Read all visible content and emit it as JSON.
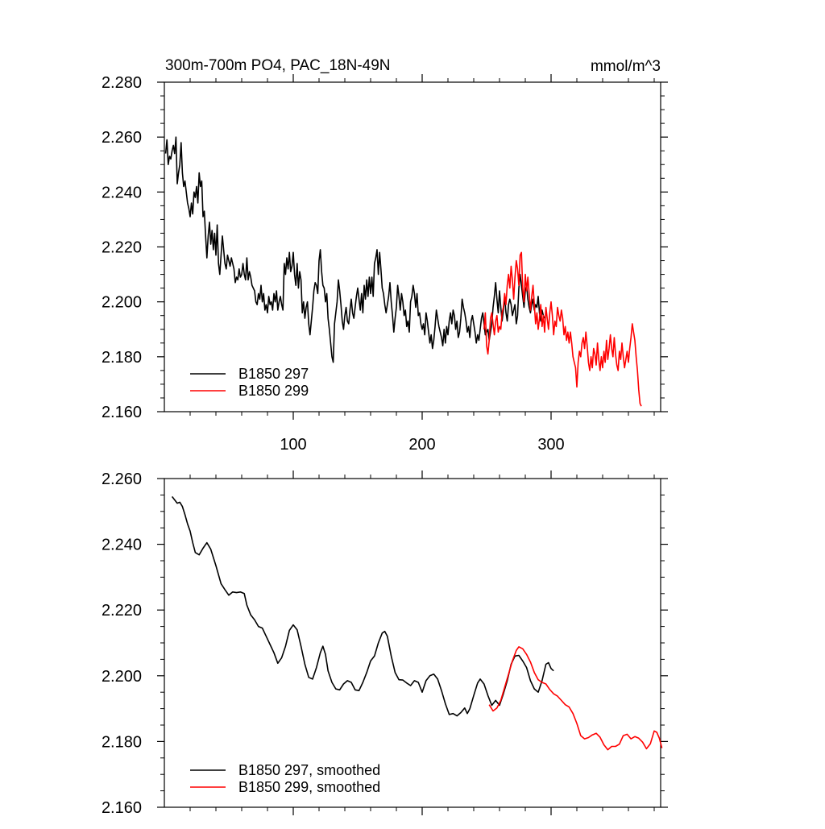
{
  "chart_data": [
    {
      "type": "line",
      "title": "300m-700m PO4, PAC_18N-49N",
      "units": "mmol/m^3",
      "xlim": [
        0,
        385
      ],
      "ylim": [
        2.16,
        2.28
      ],
      "y_ticks": [
        "2.280",
        "2.260",
        "2.240",
        "2.220",
        "2.200",
        "2.180",
        "2.160"
      ],
      "x_ticks": [
        "100",
        "200",
        "300"
      ],
      "legend": [
        "B1850 297",
        "B1850 299"
      ],
      "series": [
        {
          "name": "B1850 297",
          "color": "#000000",
          "x_start": 1,
          "x_step": 1,
          "values": [
            2.254,
            2.259,
            2.25,
            2.253,
            2.252,
            2.255,
            2.257,
            2.254,
            2.26,
            2.243,
            2.247,
            2.25,
            2.258,
            2.247,
            2.242,
            2.244,
            2.24,
            2.236,
            2.234,
            2.231,
            2.236,
            2.232,
            2.24,
            2.238,
            2.242,
            2.236,
            2.247,
            2.242,
            2.244,
            2.231,
            2.233,
            2.224,
            2.216,
            2.224,
            2.229,
            2.221,
            2.226,
            2.219,
            2.225,
            2.217,
            2.228,
            2.214,
            2.21,
            2.217,
            2.224,
            2.219,
            2.214,
            2.212,
            2.217,
            2.215,
            2.213,
            2.216,
            2.214,
            2.212,
            2.207,
            2.209,
            2.208,
            2.212,
            2.209,
            2.21,
            2.214,
            2.21,
            2.208,
            2.216,
            2.208,
            2.211,
            2.209,
            2.206,
            2.205,
            2.204,
            2.2,
            2.199,
            2.203,
            2.201,
            2.206,
            2.2,
            2.203,
            2.197,
            2.199,
            2.196,
            2.202,
            2.199,
            2.2,
            2.197,
            2.203,
            2.2,
            2.204,
            2.197,
            2.2,
            2.202,
            2.199,
            2.197,
            2.214,
            2.21,
            2.216,
            2.212,
            2.218,
            2.211,
            2.213,
            2.218,
            2.21,
            2.206,
            2.214,
            2.205,
            2.211,
            2.208,
            2.196,
            2.2,
            2.194,
            2.198,
            2.2,
            2.192,
            2.188,
            2.193,
            2.198,
            2.204,
            2.207,
            2.206,
            2.203,
            2.215,
            2.219,
            2.211,
            2.206,
            2.205,
            2.2,
            2.203,
            2.194,
            2.19,
            2.185,
            2.18,
            2.178,
            2.192,
            2.196,
            2.2,
            2.208,
            2.204,
            2.199,
            2.193,
            2.19,
            2.195,
            2.198,
            2.193,
            2.192,
            2.197,
            2.201,
            2.196,
            2.194,
            2.198,
            2.202,
            2.205,
            2.201,
            2.197,
            2.203,
            2.196,
            2.206,
            2.201,
            2.208,
            2.202,
            2.209,
            2.203,
            2.209,
            2.202,
            2.214,
            2.216,
            2.219,
            2.21,
            2.218,
            2.212,
            2.205,
            2.203,
            2.199,
            2.196,
            2.199,
            2.202,
            2.207,
            2.2,
            2.195,
            2.189,
            2.194,
            2.198,
            2.206,
            2.202,
            2.197,
            2.203,
            2.2,
            2.195,
            2.197,
            2.191,
            2.193,
            2.189,
            2.2,
            2.202,
            2.206,
            2.203,
            2.198,
            2.203,
            2.195,
            2.196,
            2.192,
            2.19,
            2.192,
            2.188,
            2.196,
            2.193,
            2.189,
            2.185,
            2.188,
            2.183,
            2.186,
            2.191,
            2.197,
            2.194,
            2.191,
            2.189,
            2.187,
            2.184,
            2.19,
            2.185,
            2.191,
            2.188,
            2.193,
            2.196,
            2.192,
            2.197,
            2.195,
            2.19,
            2.193,
            2.187,
            2.189,
            2.194,
            2.201,
            2.198,
            2.196,
            2.193,
            2.189,
            2.191,
            2.187,
            2.193,
            2.195,
            2.192,
            2.189,
            2.185,
            2.188,
            2.186,
            2.19,
            2.194,
            2.196,
            2.192,
            2.188,
            2.189,
            2.19,
            2.186,
            2.189,
            2.192,
            2.198,
            2.202,
            2.207,
            2.201,
            2.196,
            2.204,
            2.198,
            2.193,
            2.197,
            2.202,
            2.196,
            2.193,
            2.199,
            2.201,
            2.199,
            2.195,
            2.197,
            2.199,
            2.192,
            2.195,
            2.205,
            2.21,
            2.206,
            2.202,
            2.198,
            2.204,
            2.206,
            2.201,
            2.198,
            2.196,
            2.199,
            2.201,
            2.197,
            2.199,
            2.198,
            2.202,
            2.196,
            2.193,
            2.197,
            2.195,
            2.194
          ]
        },
        {
          "name": "B1850 299",
          "color": "#ff0000",
          "x_start": 248,
          "x_step": 1,
          "values": [
            2.19,
            2.196,
            2.184,
            2.181,
            2.186,
            2.194,
            2.196,
            2.192,
            2.188,
            2.193,
            2.195,
            2.189,
            2.191,
            2.19,
            2.196,
            2.198,
            2.203,
            2.199,
            2.206,
            2.21,
            2.205,
            2.213,
            2.208,
            2.201,
            2.209,
            2.215,
            2.212,
            2.206,
            2.217,
            2.218,
            2.205,
            2.2,
            2.21,
            2.204,
            2.209,
            2.203,
            2.197,
            2.202,
            2.206,
            2.199,
            2.192,
            2.196,
            2.19,
            2.194,
            2.199,
            2.191,
            2.195,
            2.189,
            2.198,
            2.194,
            2.19,
            2.196,
            2.2,
            2.195,
            2.188,
            2.193,
            2.191,
            2.198,
            2.195,
            2.193,
            2.197,
            2.194,
            2.188,
            2.191,
            2.186,
            2.189,
            2.185,
            2.189,
            2.185,
            2.18,
            2.178,
            2.176,
            2.169,
            2.178,
            2.182,
            2.18,
            2.185,
            2.187,
            2.183,
            2.189,
            2.184,
            2.178,
            2.175,
            2.18,
            2.176,
            2.183,
            2.181,
            2.177,
            2.185,
            2.179,
            2.175,
            2.18,
            2.176,
            2.182,
            2.178,
            2.186,
            2.179,
            2.183,
            2.188,
            2.183,
            2.18,
            2.187,
            2.181,
            2.177,
            2.175,
            2.182,
            2.179,
            2.185,
            2.18,
            2.176,
            2.179,
            2.182,
            2.178,
            2.183,
            2.187,
            2.192,
            2.189,
            2.186,
            2.18,
            2.175,
            2.168,
            2.163,
            2.162
          ]
        }
      ]
    },
    {
      "type": "line",
      "title": "",
      "xlim": [
        0,
        385
      ],
      "ylim": [
        2.16,
        2.26
      ],
      "y_ticks": [
        "2.260",
        "2.240",
        "2.220",
        "2.200",
        "2.180",
        "2.160"
      ],
      "legend": [
        "B1850 297, smoothed",
        "B1850 299, smoothed"
      ],
      "series": [
        {
          "name": "B1850 297, smoothed",
          "color": "#000000",
          "points": [
            [
              6,
              2.2545
            ],
            [
              8,
              2.2535
            ],
            [
              10,
              2.2525
            ],
            [
              12,
              2.2528
            ],
            [
              14,
              2.2515
            ],
            [
              16,
              2.249
            ],
            [
              18,
              2.2462
            ],
            [
              20,
              2.244
            ],
            [
              22,
              2.2405
            ],
            [
              24,
              2.2375
            ],
            [
              27,
              2.2368
            ],
            [
              30,
              2.2388
            ],
            [
              33,
              2.2405
            ],
            [
              36,
              2.2385
            ],
            [
              40,
              2.2335
            ],
            [
              44,
              2.228
            ],
            [
              47,
              2.2262
            ],
            [
              50,
              2.2245
            ],
            [
              53,
              2.2255
            ],
            [
              56,
              2.2253
            ],
            [
              59,
              2.2255
            ],
            [
              62,
              2.225
            ],
            [
              64,
              2.2215
            ],
            [
              67,
              2.2185
            ],
            [
              70,
              2.217
            ],
            [
              73,
              2.215
            ],
            [
              76,
              2.2145
            ],
            [
              79,
              2.212
            ],
            [
              82,
              2.2095
            ],
            [
              85,
              2.207
            ],
            [
              88,
              2.2038
            ],
            [
              91,
              2.2055
            ],
            [
              94,
              2.209
            ],
            [
              97,
              2.2138
            ],
            [
              100,
              2.2155
            ],
            [
              103,
              2.214
            ],
            [
              106,
              2.209
            ],
            [
              109,
              2.2035
            ],
            [
              112,
              2.1995
            ],
            [
              115,
              2.199
            ],
            [
              118,
              2.2025
            ],
            [
              121,
              2.207
            ],
            [
              123,
              2.209
            ],
            [
              125,
              2.2065
            ],
            [
              127,
              2.2015
            ],
            [
              130,
              2.198
            ],
            [
              133,
              2.196
            ],
            [
              136,
              2.1957
            ],
            [
              139,
              2.1975
            ],
            [
              142,
              2.1985
            ],
            [
              145,
              2.198
            ],
            [
              148,
              2.1957
            ],
            [
              151,
              2.1955
            ],
            [
              154,
              2.198
            ],
            [
              157,
              2.201
            ],
            [
              160,
              2.2045
            ],
            [
              163,
              2.206
            ],
            [
              166,
              2.21
            ],
            [
              169,
              2.213
            ],
            [
              171,
              2.2135
            ],
            [
              173,
              2.212
            ],
            [
              176,
              2.206
            ],
            [
              179,
              2.201
            ],
            [
              182,
              2.1988
            ],
            [
              185,
              2.1987
            ],
            [
              188,
              2.1978
            ],
            [
              191,
              2.197
            ],
            [
              194,
              2.1985
            ],
            [
              197,
              2.198
            ],
            [
              200,
              2.195
            ],
            [
              203,
              2.1985
            ],
            [
              206,
              2.2
            ],
            [
              209,
              2.2005
            ],
            [
              212,
              2.199
            ],
            [
              215,
              2.1955
            ],
            [
              218,
              2.1915
            ],
            [
              221,
              2.1882
            ],
            [
              224,
              2.1885
            ],
            [
              227,
              2.1878
            ],
            [
              230,
              2.1888
            ],
            [
              233,
              2.1902
            ],
            [
              235,
              2.1885
            ],
            [
              237,
              2.19
            ],
            [
              240,
              2.194
            ],
            [
              243,
              2.1978
            ],
            [
              245,
              2.199
            ],
            [
              248,
              2.1975
            ],
            [
              251,
              2.194
            ],
            [
              254,
              2.191
            ],
            [
              257,
              2.1925
            ],
            [
              260,
              2.191
            ],
            [
              263,
              2.1945
            ],
            [
              266,
              2.1985
            ],
            [
              269,
              2.2035
            ],
            [
              272,
              2.206
            ],
            [
              275,
              2.2062
            ],
            [
              278,
              2.2045
            ],
            [
              281,
              2.2025
            ],
            [
              284,
              2.1985
            ],
            [
              287,
              2.196
            ],
            [
              290,
              2.195
            ],
            [
              293,
              2.1985
            ],
            [
              296,
              2.2035
            ],
            [
              298,
              2.204
            ],
            [
              300,
              2.2022
            ],
            [
              302,
              2.2015
            ]
          ]
        },
        {
          "name": "B1850 299, smoothed",
          "color": "#ff0000",
          "points": [
            [
              252,
              2.1912
            ],
            [
              255,
              2.1893
            ],
            [
              258,
              2.1902
            ],
            [
              261,
              2.1925
            ],
            [
              264,
              2.1965
            ],
            [
              267,
              2.2005
            ],
            [
              270,
              2.2045
            ],
            [
              273,
              2.2077
            ],
            [
              275,
              2.2088
            ],
            [
              278,
              2.2082
            ],
            [
              281,
              2.2065
            ],
            [
              284,
              2.2042
            ],
            [
              287,
              2.201
            ],
            [
              290,
              2.1988
            ],
            [
              293,
              2.198
            ],
            [
              296,
              2.1975
            ],
            [
              299,
              2.1958
            ],
            [
              302,
              2.1945
            ],
            [
              305,
              2.1938
            ],
            [
              308,
              2.1925
            ],
            [
              311,
              2.1912
            ],
            [
              314,
              2.1905
            ],
            [
              317,
              2.1885
            ],
            [
              320,
              2.1855
            ],
            [
              323,
              2.1818
            ],
            [
              326,
              2.1808
            ],
            [
              329,
              2.1812
            ],
            [
              332,
              2.182
            ],
            [
              335,
              2.1825
            ],
            [
              338,
              2.1813
            ],
            [
              341,
              2.179
            ],
            [
              344,
              2.1775
            ],
            [
              347,
              2.1785
            ],
            [
              350,
              2.1785
            ],
            [
              353,
              2.1792
            ],
            [
              356,
              2.1818
            ],
            [
              359,
              2.1822
            ],
            [
              362,
              2.1808
            ],
            [
              365,
              2.1815
            ],
            [
              368,
              2.181
            ],
            [
              371,
              2.1798
            ],
            [
              374,
              2.1778
            ],
            [
              377,
              2.1793
            ],
            [
              380,
              2.1832
            ],
            [
              382,
              2.1828
            ],
            [
              384,
              2.181
            ],
            [
              386,
              2.178
            ]
          ]
        }
      ]
    }
  ]
}
